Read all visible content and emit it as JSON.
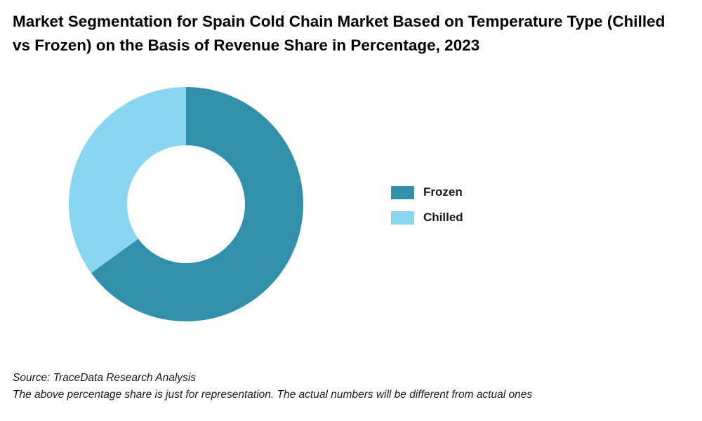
{
  "chart_data": {
    "type": "pie",
    "title": "Market Segmentation for Spain Cold Chain Market Based on Temperature Type (Chilled vs Frozen) on the Basis of Revenue Share in Percentage, 2023",
    "donut": true,
    "categories": [
      "Frozen",
      "Chilled"
    ],
    "values": [
      65,
      35
    ],
    "colors": [
      "#3191aa",
      "#89d6f0"
    ],
    "legend_position": "right"
  },
  "footer": {
    "source": "Source: TraceData Research Analysis",
    "note": "The above percentage share is just for representation. The actual numbers will be different from actual ones"
  }
}
